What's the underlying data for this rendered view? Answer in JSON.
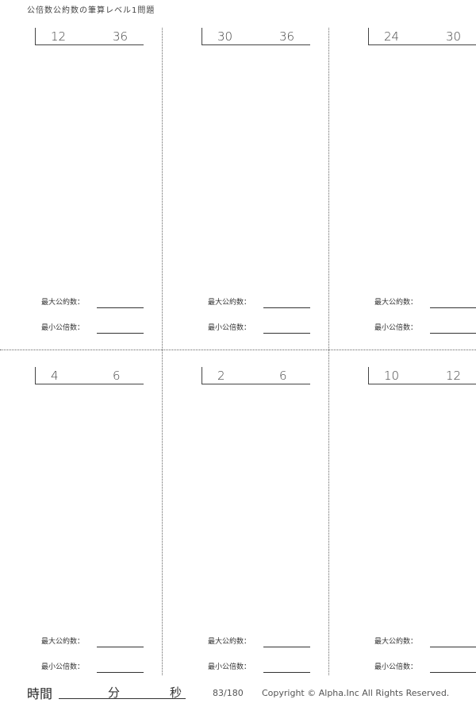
{
  "header": {
    "title": "公倍数公約数の筆算レベル1問題"
  },
  "labels": {
    "gcd": "最大公約数：",
    "lcm": "最小公倍数："
  },
  "problems": [
    {
      "a": "12",
      "b": "36"
    },
    {
      "a": "30",
      "b": "36"
    },
    {
      "a": "24",
      "b": "30"
    },
    {
      "a": "4",
      "b": "6"
    },
    {
      "a": "2",
      "b": "6"
    },
    {
      "a": "10",
      "b": "12"
    }
  ],
  "footer": {
    "time_label": "時間",
    "minutes_label": "分",
    "seconds_label": "秒",
    "page": "83/180",
    "copyright": "Copyright ©  Alpha.Inc All Rights Reserved."
  }
}
